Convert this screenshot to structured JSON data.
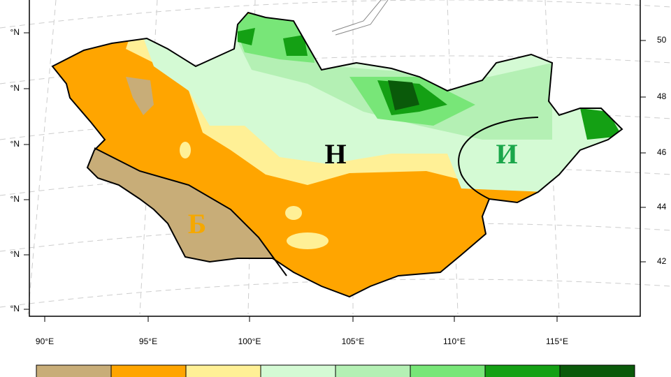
{
  "map": {
    "lon_labels": [
      "90°E",
      "95°E",
      "100°E",
      "105°E",
      "110°E",
      "115°E"
    ],
    "lat_labels_left": [
      "°N",
      "°N",
      "°N",
      "°N",
      "°N",
      "°N"
    ],
    "lat_labels_right": [
      "50",
      "48",
      "46",
      "44",
      "42"
    ],
    "region_labels": [
      {
        "label": "Н",
        "color": "#000000"
      },
      {
        "label": "И",
        "color": "#1aa64a"
      },
      {
        "label": "Б",
        "color": "#f5a800"
      }
    ],
    "legend_colors": [
      "#c8ad78",
      "#ffa500",
      "#fff096",
      "#d4fad4",
      "#b4f0b4",
      "#78e678",
      "#14a014",
      "#0a5a0a"
    ]
  }
}
